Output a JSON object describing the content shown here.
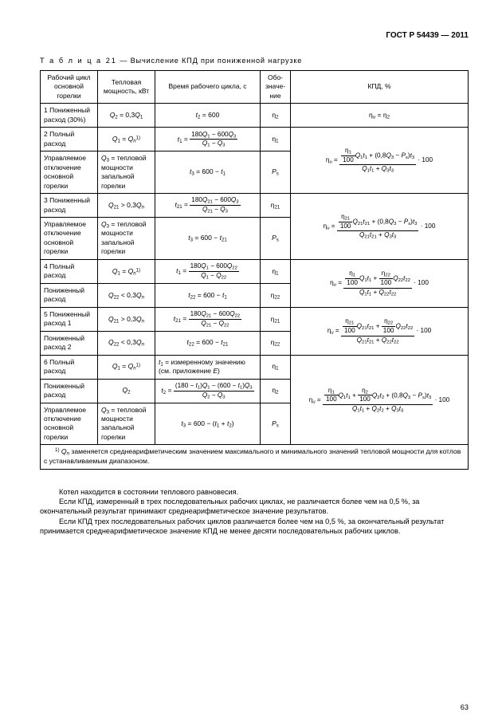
{
  "header": "ГОСТ Р 54439 — 2011",
  "table_label": "Т а б л и ц а  21",
  "table_caption": " — Вычисление КПД при пониженной нагрузке",
  "columns": {
    "c1": "Рабочий цикл основной горелки",
    "c2": "Тепловая мощность, кВт",
    "c3": "Время рабочего цикла, с",
    "c4": "Обо-\nзначе-\nние",
    "c5": "КПД, %"
  },
  "rows": {
    "r1": {
      "cycle": "1 Пониженный расход (30%)"
    },
    "r2": {
      "cycle": "2 Полный расход"
    },
    "r3": {
      "cycle": "Управляемое отключение основной горелки",
      "power_text": " = тепловой мощности запальной горелки"
    },
    "r4": {
      "cycle": "3 Пониженный расход"
    },
    "r5": {
      "cycle": "Управляемое отключение основной горелки",
      "power_text": " = тепловой мощности запальной горелки"
    },
    "r6": {
      "cycle": "4 Полный расход"
    },
    "r7": {
      "cycle": "Пониженный расход"
    },
    "r8": {
      "cycle": "5 Пониженный расход 1"
    },
    "r9": {
      "cycle": "Пониженный расход 2"
    },
    "r10": {
      "cycle": "6 Полный расход",
      "time_text": " = измеренному значению (см. приложение "
    },
    "r11": {
      "cycle": "Пониженный расход"
    },
    "r12": {
      "cycle": "Управляемое отключение основной горелки",
      "power_text": " = тепловой мощности запальной горелки"
    }
  },
  "footnote_text": " заменяется среднеарифметическим значением максимального и минимального значений тепло­вой мощности для котлов с устанавливаемым диапазоном.",
  "body": {
    "p1": "Котел находится в состоянии теплового равновесия.",
    "p2": "Если КПД, измеренный в трех последовательных рабочих циклах, не различается более чем на 0,5 %, за окончательный результат принимают среднеарифметическое значение результатов.",
    "p3": "Если КПД трех последовательных рабочих циклов различается более чем на 0,5 %, за окончательный результат принимается среднеарифметическое значение КПД не менее десяти последовательных рабочих циклов."
  },
  "page_number": "63"
}
